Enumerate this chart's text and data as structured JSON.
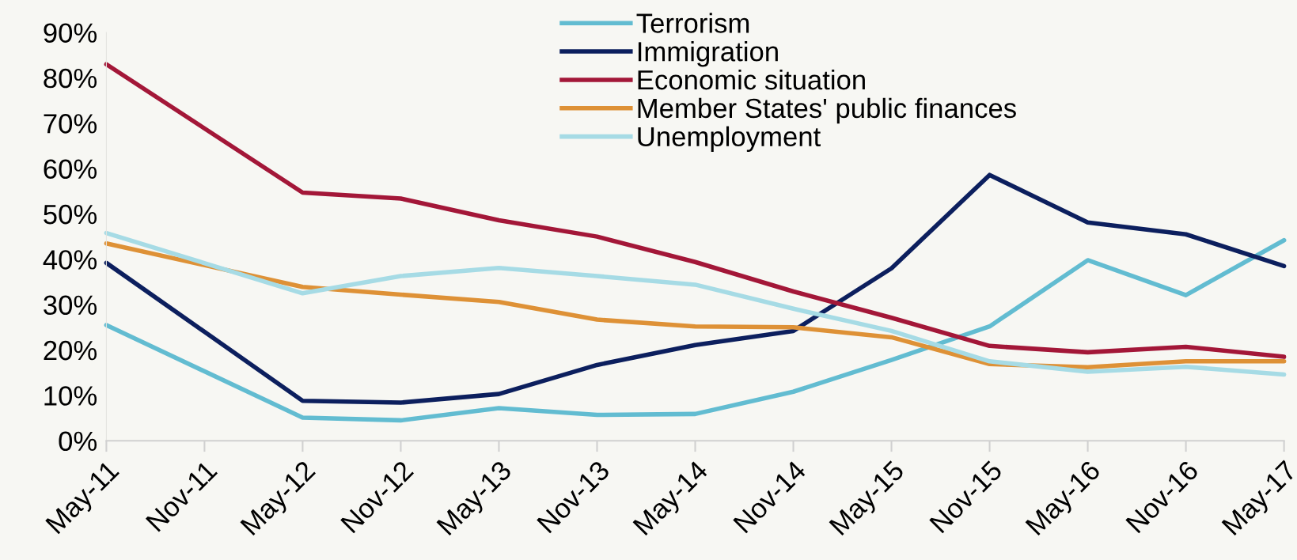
{
  "chart_data": {
    "type": "line",
    "categories": [
      "May-11",
      "Nov-11",
      "May-12",
      "Nov-12",
      "May-13",
      "Nov-13",
      "May-14",
      "Nov-14",
      "May-15",
      "Nov-15",
      "May-16",
      "Nov-16",
      "May-17"
    ],
    "series": [
      {
        "name": "Terrorism",
        "color": "#62bcd1",
        "values": [
          25.5,
          null,
          5.1,
          4.5,
          7.2,
          5.7,
          5.9,
          10.8,
          17.8,
          25.2,
          39.8,
          32.1,
          44.2
        ]
      },
      {
        "name": "Immigration",
        "color": "#0c1f5e",
        "values": [
          39.2,
          null,
          8.8,
          8.4,
          10.3,
          16.7,
          21.1,
          24.2,
          38.0,
          58.6,
          48.1,
          45.5,
          38.5
        ]
      },
      {
        "name": "Economic situation",
        "color": "#a31738",
        "values": [
          83.0,
          null,
          54.7,
          53.4,
          48.6,
          45.0,
          39.4,
          32.9,
          27.1,
          20.9,
          19.5,
          20.7,
          18.5
        ]
      },
      {
        "name": "Member States' public finances",
        "color": "#de9136",
        "values": [
          43.5,
          null,
          33.9,
          32.2,
          30.6,
          26.7,
          25.2,
          25.0,
          22.8,
          16.9,
          16.2,
          17.5,
          17.5
        ]
      },
      {
        "name": "Unemployment",
        "color": "#a6dbe5",
        "values": [
          45.8,
          null,
          32.5,
          36.3,
          38.1,
          36.3,
          34.4,
          29.1,
          24.2,
          17.5,
          15.2,
          16.3,
          14.6
        ]
      }
    ],
    "ylim": [
      0,
      90
    ],
    "yticks": [
      {
        "value": 0,
        "label": "0%"
      },
      {
        "value": 10,
        "label": "10%"
      },
      {
        "value": 20,
        "label": "20%"
      },
      {
        "value": 30,
        "label": "30%"
      },
      {
        "value": 40,
        "label": "40%"
      },
      {
        "value": 50,
        "label": "50%"
      },
      {
        "value": 60,
        "label": "60%"
      },
      {
        "value": 70,
        "label": "70%"
      },
      {
        "value": 80,
        "label": "80%"
      },
      {
        "value": 90,
        "label": "90%"
      }
    ],
    "grid": false,
    "legend": "top",
    "marker": "none",
    "line_style": "solid"
  }
}
